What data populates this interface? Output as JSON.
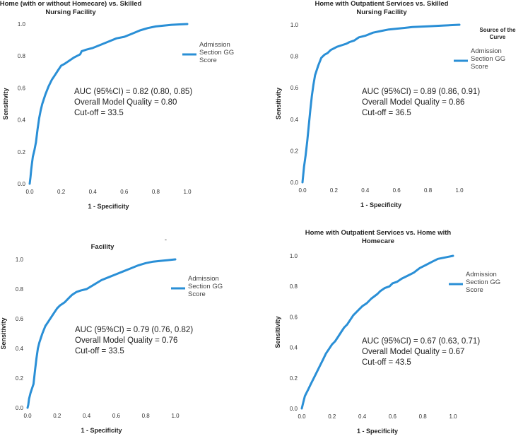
{
  "chart_data": [
    {
      "type": "line",
      "title_lines": [
        "Home (with or without Homecare) vs. Skilled",
        "Nursing Facility"
      ],
      "xlabel": "1 - Specificity",
      "ylabel": "Sensitivity",
      "xlim": [
        0,
        1
      ],
      "ylim": [
        0,
        1
      ],
      "xticks": [
        "0.0",
        "0.2",
        "0.4",
        "0.6",
        "0.8",
        "1.0"
      ],
      "yticks": [
        "0.0",
        "0.2",
        "0.4",
        "0.6",
        "0.8",
        "1.0"
      ],
      "legend_title_lines": [],
      "legend_lines": [
        "Admission",
        "Section GG",
        "Score"
      ],
      "annotation_lines": [
        "AUC (95%CI) = 0.82 (0.80, 0.85)",
        "Overall Model Quality = 0.80",
        "Cut-off = 33.5"
      ],
      "series": [
        {
          "name": "Admission Section GG Score",
          "color": "#2a8fd6",
          "x": [
            0,
            0.005,
            0.01,
            0.015,
            0.02,
            0.03,
            0.04,
            0.05,
            0.06,
            0.07,
            0.08,
            0.1,
            0.12,
            0.14,
            0.16,
            0.18,
            0.2,
            0.22,
            0.25,
            0.28,
            0.3,
            0.32,
            0.33,
            0.36,
            0.4,
            0.45,
            0.5,
            0.55,
            0.6,
            0.65,
            0.7,
            0.75,
            0.8,
            0.85,
            0.9,
            0.95,
            1.0
          ],
          "y": [
            0,
            0.04,
            0.09,
            0.13,
            0.17,
            0.21,
            0.26,
            0.34,
            0.41,
            0.46,
            0.5,
            0.56,
            0.61,
            0.65,
            0.68,
            0.71,
            0.74,
            0.75,
            0.77,
            0.79,
            0.8,
            0.81,
            0.83,
            0.84,
            0.85,
            0.87,
            0.89,
            0.91,
            0.92,
            0.94,
            0.96,
            0.975,
            0.985,
            0.99,
            0.995,
            0.998,
            1.0
          ]
        }
      ]
    },
    {
      "type": "line",
      "title_lines": [
        "Home with Outpatient Services vs. Skilled",
        "Nursing Facility"
      ],
      "xlabel": "1 - Specificity",
      "ylabel": "Sensitivity",
      "xlim": [
        0,
        1
      ],
      "ylim": [
        0,
        1
      ],
      "xticks": [
        "0.0",
        "0.2",
        "0.4",
        "0.6",
        "0.8",
        "1.0"
      ],
      "yticks": [
        "0.0",
        "0.2",
        "0.4",
        "0.6",
        "0.8",
        "1.0"
      ],
      "legend_title_lines": [
        "Source of the",
        "Curve"
      ],
      "legend_lines": [
        "Admission",
        "Section GG",
        "Score"
      ],
      "annotation_lines": [
        "AUC (95%CI) = 0.89 (0.86, 0.91)",
        "Overall Model Quality = 0.86",
        "Cut-off = 36.5"
      ],
      "series": [
        {
          "name": "Admission Section GG Score",
          "color": "#2a8fd6",
          "x": [
            0,
            0.005,
            0.01,
            0.02,
            0.03,
            0.04,
            0.05,
            0.06,
            0.07,
            0.08,
            0.1,
            0.12,
            0.14,
            0.16,
            0.18,
            0.2,
            0.22,
            0.25,
            0.28,
            0.3,
            0.33,
            0.36,
            0.4,
            0.45,
            0.5,
            0.55,
            0.6,
            0.65,
            0.7,
            0.8,
            0.9,
            1.0
          ],
          "y": [
            0,
            0.05,
            0.1,
            0.17,
            0.26,
            0.36,
            0.46,
            0.55,
            0.62,
            0.68,
            0.74,
            0.79,
            0.81,
            0.82,
            0.84,
            0.85,
            0.86,
            0.87,
            0.88,
            0.89,
            0.9,
            0.92,
            0.93,
            0.95,
            0.96,
            0.97,
            0.975,
            0.98,
            0.985,
            0.99,
            0.995,
            1.0
          ]
        }
      ]
    },
    {
      "type": "line",
      "title_lines": [
        "Facility"
      ],
      "xlabel": "1 - Specificity",
      "ylabel": "Sensitivity",
      "xlim": [
        0,
        1
      ],
      "ylim": [
        0,
        1
      ],
      "xticks": [
        "0.0",
        "0.2",
        "0.4",
        "0.6",
        "0.8",
        "1.0"
      ],
      "yticks": [
        "0.0",
        "0.2",
        "0.4",
        "0.6",
        "0.8",
        "1.0"
      ],
      "legend_title_lines": [],
      "legend_lines": [
        "Admission",
        "Section GG",
        "Score"
      ],
      "annotation_lines": [
        "AUC (95%CI) = 0.79 (0.76, 0.82)",
        "Overall Model Quality = 0.76",
        "Cut-off = 33.5"
      ],
      "series": [
        {
          "name": "Admission Section GG Score",
          "color": "#2a8fd6",
          "x": [
            0,
            0.005,
            0.01,
            0.02,
            0.03,
            0.04,
            0.05,
            0.06,
            0.07,
            0.08,
            0.1,
            0.12,
            0.14,
            0.16,
            0.18,
            0.2,
            0.22,
            0.25,
            0.28,
            0.3,
            0.33,
            0.36,
            0.4,
            0.45,
            0.5,
            0.55,
            0.6,
            0.65,
            0.7,
            0.75,
            0.8,
            0.85,
            0.9,
            0.95,
            1.0
          ],
          "y": [
            0,
            0.02,
            0.06,
            0.1,
            0.13,
            0.16,
            0.25,
            0.33,
            0.4,
            0.44,
            0.5,
            0.55,
            0.58,
            0.61,
            0.64,
            0.67,
            0.69,
            0.71,
            0.74,
            0.76,
            0.78,
            0.79,
            0.8,
            0.83,
            0.86,
            0.88,
            0.9,
            0.92,
            0.94,
            0.96,
            0.975,
            0.985,
            0.99,
            0.995,
            1.0
          ]
        }
      ]
    },
    {
      "type": "line",
      "title_lines": [
        "Home with Outpatient Services vs. Home with",
        "Homecare"
      ],
      "xlabel": "1 - Specificity",
      "ylabel": "Sensitivity",
      "xlim": [
        0,
        1
      ],
      "ylim": [
        0,
        1
      ],
      "xticks": [
        "0.0",
        "0.2",
        "0.4",
        "0.6",
        "0.8",
        "1.0"
      ],
      "yticks": [
        "0.0",
        "0.2",
        "0.4",
        "0.6",
        "0.8",
        "1.0"
      ],
      "legend_title_lines": [],
      "legend_lines": [
        "Admission",
        "Section GG",
        "Score"
      ],
      "annotation_lines": [
        "AUC (95%CI) = 0.67 (0.63, 0.71)",
        "Overall Model Quality = 0.67",
        "Cut-off = 43.5"
      ],
      "series": [
        {
          "name": "Admission Section GG Score",
          "color": "#2a8fd6",
          "x": [
            0,
            0.01,
            0.02,
            0.03,
            0.04,
            0.06,
            0.08,
            0.1,
            0.12,
            0.14,
            0.16,
            0.18,
            0.2,
            0.22,
            0.24,
            0.26,
            0.28,
            0.3,
            0.32,
            0.34,
            0.36,
            0.38,
            0.4,
            0.43,
            0.46,
            0.5,
            0.52,
            0.55,
            0.58,
            0.6,
            0.63,
            0.66,
            0.7,
            0.74,
            0.78,
            0.82,
            0.86,
            0.9,
            0.95,
            1.0
          ],
          "y": [
            0,
            0.04,
            0.08,
            0.1,
            0.12,
            0.16,
            0.2,
            0.24,
            0.28,
            0.32,
            0.36,
            0.39,
            0.42,
            0.44,
            0.47,
            0.5,
            0.53,
            0.55,
            0.58,
            0.61,
            0.63,
            0.65,
            0.67,
            0.69,
            0.72,
            0.75,
            0.77,
            0.79,
            0.8,
            0.82,
            0.83,
            0.85,
            0.87,
            0.89,
            0.92,
            0.94,
            0.96,
            0.98,
            0.99,
            1.0
          ]
        }
      ]
    }
  ],
  "stray_marks": [
    "-"
  ]
}
